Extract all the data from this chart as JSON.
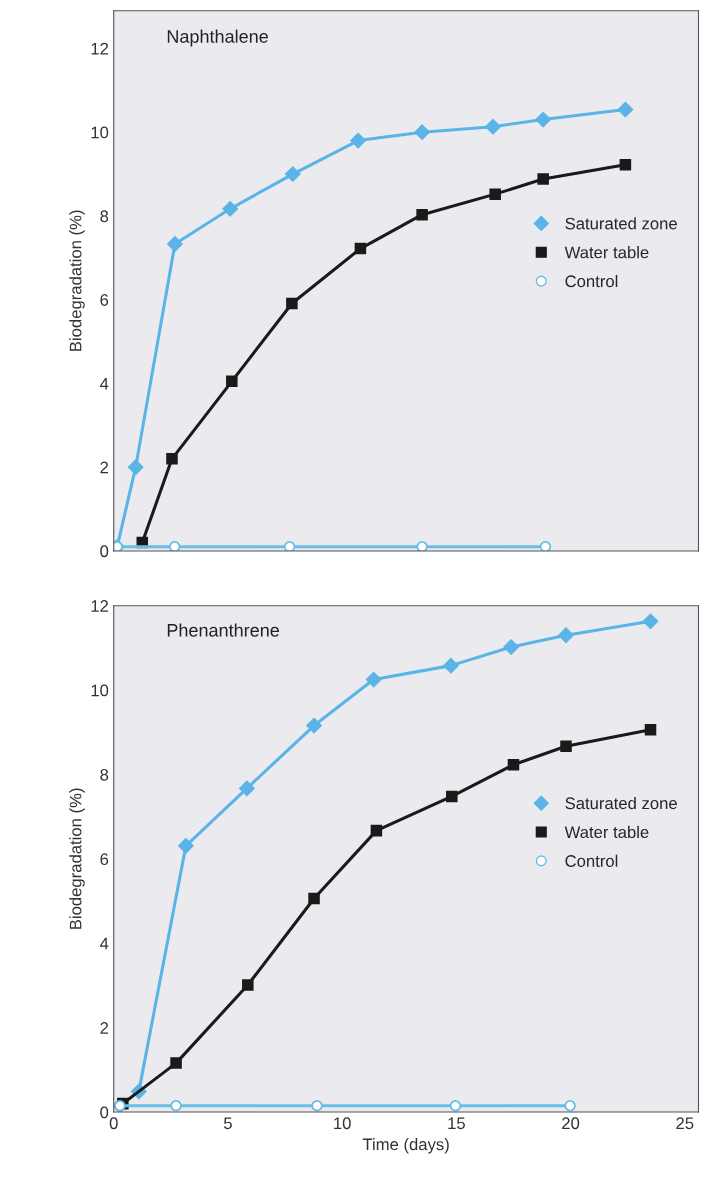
{
  "chart_data": [
    {
      "type": "line",
      "title": "Naphthalene",
      "ylabel": "Biodegradation (%)",
      "xlim": [
        0,
        25.6
      ],
      "xticks": [
        0,
        5,
        10,
        15,
        20,
        25
      ],
      "ylim": [
        0,
        12.9
      ],
      "yticks": [
        0,
        2,
        4,
        6,
        8,
        10,
        12
      ],
      "tick_labels": "y",
      "grid": false,
      "legend": "right",
      "line_style": "solid",
      "series": [
        {
          "name": "Saturated zone",
          "color": "#5ab4e5",
          "marker": "diamond",
          "x": [
            0.15,
            0.96,
            2.68,
            5.1,
            7.84,
            10.7,
            13.5,
            16.6,
            18.8,
            22.4
          ],
          "values": [
            0.1,
            2.0,
            7.33,
            8.17,
            9.0,
            9.8,
            10.0,
            10.13,
            10.3,
            10.54
          ]
        },
        {
          "name": "Water table",
          "color": "#1a1a1a",
          "marker": "square",
          "x": [
            1.25,
            2.55,
            5.17,
            7.8,
            10.8,
            13.5,
            16.7,
            18.8,
            22.4
          ],
          "values": [
            0.2,
            2.2,
            4.05,
            5.91,
            7.22,
            8.03,
            8.52,
            8.88,
            9.22
          ]
        },
        {
          "name": "Control",
          "color": "#6cbde6",
          "marker": "circle",
          "x": [
            0.15,
            2.67,
            7.7,
            13.5,
            18.9
          ],
          "values": [
            0.1,
            0.1,
            0.1,
            0.1,
            0.1
          ]
        }
      ]
    },
    {
      "type": "line",
      "title": "Phenanthrene",
      "ylabel": "Biodegradation (%)",
      "xlabel": "Time (days)",
      "xlim": [
        0,
        25.6
      ],
      "xticks": [
        0,
        5,
        10,
        15,
        20,
        25
      ],
      "ylim": [
        0,
        12
      ],
      "yticks": [
        0,
        2,
        4,
        6,
        8,
        10,
        12
      ],
      "grid": false,
      "legend": "right",
      "line_style": "solid",
      "series": [
        {
          "name": "Saturated zone",
          "color": "#5ab4e5",
          "marker": "diamond",
          "x": [
            0.27,
            1.1,
            3.16,
            5.83,
            8.77,
            11.38,
            14.76,
            17.4,
            19.8,
            23.5
          ],
          "values": [
            0.15,
            0.49,
            6.31,
            7.67,
            9.16,
            10.25,
            10.58,
            11.02,
            11.3,
            11.63
          ]
        },
        {
          "name": "Water table",
          "color": "#1a1a1a",
          "marker": "square",
          "x": [
            0.4,
            2.73,
            5.87,
            8.77,
            11.5,
            14.8,
            17.5,
            19.8,
            23.5
          ],
          "values": [
            0.2,
            1.16,
            3.01,
            5.06,
            6.67,
            7.48,
            8.23,
            8.67,
            9.06
          ]
        },
        {
          "name": "Control",
          "color": "#6cbde6",
          "marker": "circle",
          "x": [
            0.27,
            2.73,
            8.9,
            14.96,
            19.98
          ],
          "values": [
            0.15,
            0.15,
            0.15,
            0.15,
            0.15
          ]
        }
      ]
    }
  ]
}
